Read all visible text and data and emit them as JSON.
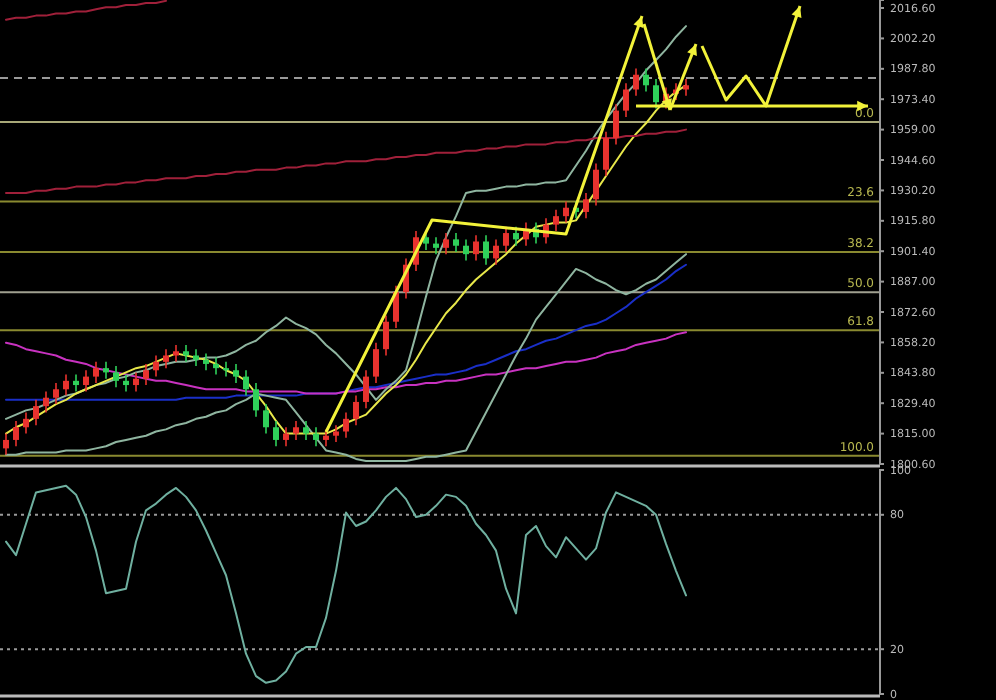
{
  "chart_data": [
    {
      "type": "candlestick",
      "tick_labels": "y",
      "ylim": [
        1800.6,
        2020.4
      ],
      "yticks": [
        {
          "value": 2016.6,
          "label": "2016.60"
        },
        {
          "value": 2002.2,
          "label": "2002.20"
        },
        {
          "value": 1987.8,
          "label": "1987.80"
        },
        {
          "value": 1973.4,
          "label": "1973.40"
        },
        {
          "value": 1959,
          "label": "1959.00"
        },
        {
          "value": 1944.6,
          "label": "1944.60"
        },
        {
          "value": 1930.2,
          "label": "1930.20"
        },
        {
          "value": 1915.8,
          "label": "1915.80"
        },
        {
          "value": 1901.4,
          "label": "1901.40"
        },
        {
          "value": 1887,
          "label": "1887.00"
        },
        {
          "value": 1872.6,
          "label": "1872.60"
        },
        {
          "value": 1858.2,
          "label": "1858.20"
        },
        {
          "value": 1843.8,
          "label": "1843.80"
        },
        {
          "value": 1829.4,
          "label": "1829.40"
        },
        {
          "value": 1815,
          "label": "1815.00"
        },
        {
          "value": 1800.6,
          "label": "1800.60"
        }
      ],
      "categories": [
        null,
        null,
        null,
        null,
        null,
        null,
        null,
        null,
        null,
        null,
        null,
        null,
        null,
        null,
        null,
        null,
        null,
        null,
        null,
        null,
        null,
        null,
        null,
        null,
        null,
        null,
        null,
        null,
        null,
        null,
        null,
        null,
        null,
        null,
        null,
        null,
        null,
        null,
        null,
        null,
        null,
        null,
        null,
        null,
        null,
        null,
        null,
        null,
        null,
        null,
        null,
        null,
        null,
        null,
        null,
        null,
        null,
        null,
        null,
        null,
        null,
        null,
        null,
        null,
        null,
        null,
        null,
        null,
        null
      ],
      "ohlc": [
        [
          1808,
          1815,
          1805,
          1812
        ],
        [
          1812,
          1821,
          1809,
          1818
        ],
        [
          1818,
          1825,
          1815,
          1822
        ],
        [
          1822,
          1831,
          1819,
          1828
        ],
        [
          1828,
          1835,
          1825,
          1832
        ],
        [
          1832,
          1839,
          1829,
          1836
        ],
        [
          1836,
          1843,
          1833,
          1840
        ],
        [
          1840,
          1843,
          1835,
          1838
        ],
        [
          1838,
          1845,
          1835,
          1842
        ],
        [
          1842,
          1849,
          1839,
          1846
        ],
        [
          1846,
          1849,
          1841,
          1844
        ],
        [
          1844,
          1847,
          1837,
          1840
        ],
        [
          1840,
          1843,
          1835,
          1838
        ],
        [
          1838,
          1844,
          1835,
          1841
        ],
        [
          1841,
          1848,
          1838,
          1845
        ],
        [
          1845,
          1852,
          1842,
          1849
        ],
        [
          1849,
          1855,
          1846,
          1852
        ],
        [
          1852,
          1857,
          1849,
          1854
        ],
        [
          1854,
          1857,
          1849,
          1852
        ],
        [
          1852,
          1855,
          1847,
          1850
        ],
        [
          1850,
          1853,
          1845,
          1848
        ],
        [
          1848,
          1851,
          1843,
          1846
        ],
        [
          1846,
          1849,
          1842,
          1845
        ],
        [
          1845,
          1848,
          1839,
          1842
        ],
        [
          1842,
          1845,
          1833,
          1836
        ],
        [
          1836,
          1839,
          1823,
          1826
        ],
        [
          1826,
          1829,
          1815,
          1818
        ],
        [
          1818,
          1821,
          1809,
          1812
        ],
        [
          1812,
          1818,
          1809,
          1815
        ],
        [
          1815,
          1821,
          1812,
          1818
        ],
        [
          1818,
          1821,
          1812,
          1815
        ],
        [
          1815,
          1818,
          1809,
          1812
        ],
        [
          1812,
          1817,
          1809,
          1814
        ],
        [
          1814,
          1819,
          1811,
          1816
        ],
        [
          1816,
          1825,
          1813,
          1822
        ],
        [
          1822,
          1833,
          1819,
          1830
        ],
        [
          1830,
          1845,
          1827,
          1842
        ],
        [
          1842,
          1858,
          1839,
          1855
        ],
        [
          1855,
          1871,
          1852,
          1868
        ],
        [
          1868,
          1885,
          1865,
          1882
        ],
        [
          1882,
          1898,
          1879,
          1895
        ],
        [
          1895,
          1911,
          1892,
          1908
        ],
        [
          1908,
          1911,
          1902,
          1905
        ],
        [
          1905,
          1908,
          1900,
          1903
        ],
        [
          1903,
          1910,
          1900,
          1907
        ],
        [
          1907,
          1910,
          1901,
          1904
        ],
        [
          1904,
          1907,
          1897,
          1900
        ],
        [
          1900,
          1909,
          1897,
          1906
        ],
        [
          1906,
          1909,
          1895,
          1898
        ],
        [
          1898,
          1907,
          1895,
          1904
        ],
        [
          1904,
          1913,
          1901,
          1910
        ],
        [
          1910,
          1913,
          1904,
          1907
        ],
        [
          1907,
          1915,
          1904,
          1912
        ],
        [
          1912,
          1915,
          1905,
          1908
        ],
        [
          1908,
          1917,
          1905,
          1914
        ],
        [
          1914,
          1921,
          1911,
          1918
        ],
        [
          1918,
          1925,
          1915,
          1922
        ],
        [
          1922,
          1925,
          1917,
          1920
        ],
        [
          1920,
          1929,
          1917,
          1926
        ],
        [
          1926,
          1943,
          1923,
          1940
        ],
        [
          1940,
          1958,
          1937,
          1955
        ],
        [
          1955,
          1971,
          1952,
          1968
        ],
        [
          1968,
          1981,
          1965,
          1978
        ],
        [
          1978,
          1988,
          1975,
          1985
        ],
        [
          1985,
          1988,
          1977,
          1980
        ],
        [
          1980,
          1983,
          1969,
          1972
        ],
        [
          1972,
          1979,
          1969,
          1976
        ],
        [
          1976,
          1981,
          1973,
          1978
        ],
        [
          1978,
          1983,
          1975,
          1980
        ]
      ],
      "colors": [
        "#e8322e",
        "#e8322e",
        "#e8322e",
        "#e8322e",
        "#e8322e",
        "#e8322e",
        "#e8322e",
        "#2fd05a",
        "#e8322e",
        "#e8322e",
        "#2fd05a",
        "#2fd05a",
        "#2fd05a",
        "#e8322e",
        "#e8322e",
        "#e8322e",
        "#e8322e",
        "#e8322e",
        "#2fd05a",
        "#2fd05a",
        "#2fd05a",
        "#2fd05a",
        "#2fd05a",
        "#2fd05a",
        "#2fd05a",
        "#2fd05a",
        "#2fd05a",
        "#2fd05a",
        "#e8322e",
        "#e8322e",
        "#2fd05a",
        "#2fd05a",
        "#e8322e",
        "#e8322e",
        "#e8322e",
        "#e8322e",
        "#e8322e",
        "#e8322e",
        "#e8322e",
        "#e8322e",
        "#e8322e",
        "#e8322e",
        "#2fd05a",
        "#2fd05a",
        "#e8322e",
        "#2fd05a",
        "#2fd05a",
        "#e8322e",
        "#2fd05a",
        "#e8322e",
        "#e8322e",
        "#2fd05a",
        "#e8322e",
        "#2fd05a",
        "#e8322e",
        "#e8322e",
        "#e8322e",
        "#2fd05a",
        "#e8322e",
        "#e8322e",
        "#e8322e",
        "#e8322e",
        "#e8322e",
        "#e8322e",
        "#2fd05a",
        "#2fd05a",
        "#e8322e",
        "#e8322e",
        "#e8322e"
      ],
      "series": [
        {
          "type": "line",
          "color": "#1a2fc8",
          "values": [
            1831,
            1831,
            1831,
            1831,
            1831,
            1831,
            1831,
            1831,
            1831,
            1831,
            1831,
            1831,
            1831,
            1831,
            1831,
            1831,
            1831,
            1831,
            1832,
            1832,
            1832,
            1832,
            1832,
            1833,
            1833,
            1833,
            1833,
            1833,
            1833,
            1833,
            1834,
            1834,
            1834,
            1834,
            1835,
            1836,
            1837,
            1837,
            1838,
            1839,
            1840,
            1841,
            1842,
            1843,
            1843,
            1844,
            1845,
            1847,
            1848,
            1850,
            1852,
            1854,
            1855,
            1857,
            1859,
            1860,
            1862,
            1864,
            1866,
            1867,
            1869,
            1872,
            1875,
            1879,
            1882,
            1885,
            1888,
            1892,
            1895
          ]
        },
        {
          "type": "line",
          "color": "#c832c0",
          "values": [
            1858,
            1857,
            1855,
            1854,
            1853,
            1852,
            1850,
            1849,
            1848,
            1846,
            1845,
            1844,
            1843,
            1842,
            1841,
            1840,
            1840,
            1839,
            1838,
            1837,
            1836,
            1836,
            1836,
            1836,
            1835,
            1835,
            1835,
            1835,
            1835,
            1835,
            1834,
            1834,
            1834,
            1834,
            1835,
            1835,
            1836,
            1836,
            1837,
            1837,
            1838,
            1838,
            1839,
            1839,
            1840,
            1840,
            1841,
            1842,
            1843,
            1843,
            1844,
            1845,
            1846,
            1846,
            1847,
            1848,
            1849,
            1849,
            1850,
            1851,
            1853,
            1854,
            1855,
            1857,
            1858,
            1859,
            1860,
            1862,
            1863
          ]
        },
        {
          "type": "line",
          "color": "#8fb5a0",
          "values": [
            1822,
            1824,
            1826,
            1827,
            1829,
            1831,
            1833,
            1834,
            1836,
            1838,
            1839,
            1841,
            1842,
            1844,
            1845,
            1847,
            1848,
            1849,
            1849,
            1850,
            1851,
            1851,
            1852,
            1854,
            1857,
            1859,
            1863,
            1866,
            1870,
            1867,
            1865,
            1862,
            1857,
            1853,
            1848,
            1843,
            1837,
            1831,
            1836,
            1840,
            1845,
            1862,
            1880,
            1897,
            1908,
            1918,
            1929,
            1930,
            1930,
            1931,
            1932,
            1932,
            1933,
            1933,
            1934,
            1934,
            1935,
            1942,
            1949,
            1957,
            1964,
            1970,
            1976,
            1981,
            1987,
            1992,
            1997,
            2003,
            2008
          ]
        },
        {
          "type": "line",
          "color": "#8fb5a0",
          "values": [
            1805,
            1805,
            1806,
            1806,
            1806,
            1806,
            1807,
            1807,
            1807,
            1808,
            1809,
            1811,
            1812,
            1813,
            1814,
            1816,
            1817,
            1819,
            1820,
            1822,
            1823,
            1825,
            1826,
            1829,
            1831,
            1834,
            1833,
            1832,
            1831,
            1825,
            1819,
            1813,
            1807,
            1806,
            1805,
            1803,
            1802,
            1802,
            1802,
            1802,
            1802,
            1803,
            1804,
            1804,
            1805,
            1806,
            1807,
            1816,
            1825,
            1834,
            1843,
            1852,
            1860,
            1869,
            1875,
            1881,
            1887,
            1893,
            1891,
            1888,
            1886,
            1883,
            1881,
            1883,
            1886,
            1888,
            1892,
            1896,
            1900
          ]
        },
        {
          "type": "line",
          "color": "#e8e84a",
          "values": [
            1815,
            1818,
            1820,
            1823,
            1826,
            1829,
            1831,
            1834,
            1836,
            1838,
            1840,
            1842,
            1844,
            1846,
            1847,
            1849,
            1851,
            1853,
            1852,
            1851,
            1850,
            1848,
            1845,
            1843,
            1840,
            1834,
            1828,
            1821,
            1815,
            1815,
            1815,
            1815,
            1815,
            1817,
            1820,
            1822,
            1824,
            1829,
            1834,
            1838,
            1843,
            1850,
            1858,
            1865,
            1872,
            1877,
            1883,
            1888,
            1892,
            1896,
            1900,
            1905,
            1909,
            1913,
            1914,
            1915,
            1915,
            1916,
            1923,
            1930,
            1937,
            1944,
            1951,
            1957,
            1962,
            1968,
            1973,
            1977,
            1980
          ]
        },
        {
          "type": "line",
          "color": "#a0203a",
          "values": [
            1929,
            1929,
            1929,
            1930,
            1930,
            1931,
            1931,
            1932,
            1932,
            1932,
            1933,
            1933,
            1934,
            1934,
            1935,
            1935,
            1936,
            1936,
            1936,
            1937,
            1937,
            1938,
            1938,
            1939,
            1939,
            1940,
            1940,
            1940,
            1941,
            1941,
            1942,
            1942,
            1943,
            1943,
            1944,
            1944,
            1944,
            1945,
            1945,
            1946,
            1946,
            1947,
            1947,
            1948,
            1948,
            1948,
            1949,
            1949,
            1950,
            1950,
            1951,
            1951,
            1952,
            1952,
            1952,
            1953,
            1953,
            1954,
            1954,
            1955,
            1955,
            1955,
            1956,
            1956,
            1957,
            1957,
            1958,
            1958,
            1959
          ]
        },
        {
          "type": "line",
          "color": "#a0203a",
          "values": [
            2011,
            2012,
            2012,
            2013,
            2013,
            2014,
            2014,
            2015,
            2015,
            2016,
            2017,
            2017,
            2018,
            2018,
            2019,
            2019,
            2020,
            null,
            null,
            null,
            null,
            null,
            null,
            null,
            null,
            null,
            null,
            null,
            null,
            null,
            null,
            null,
            null,
            null,
            null,
            null,
            null,
            null,
            null,
            null,
            null,
            null,
            null,
            null,
            null,
            null,
            null,
            null,
            null,
            null,
            null,
            null,
            null,
            null,
            null,
            null,
            null,
            null,
            null,
            null,
            null,
            null,
            null,
            null,
            null,
            null,
            null,
            null,
            null
          ]
        }
      ],
      "ref_lines": [
        {
          "axis": "y",
          "value": 1983.5,
          "color": "#9a9a9a",
          "line_style": "dashed"
        },
        {
          "axis": "y",
          "value": 1962.6,
          "color": "#a8a878",
          "line_style": "solid"
        },
        {
          "axis": "y",
          "value": 1925,
          "color": "#8a8a30",
          "line_style": "solid"
        },
        {
          "axis": "y",
          "value": 1901,
          "color": "#8a8a30",
          "line_style": "solid"
        },
        {
          "axis": "y",
          "value": 1882,
          "color": "#a0a090",
          "line_style": "solid"
        },
        {
          "axis": "y",
          "value": 1864,
          "color": "#8a8a30",
          "line_style": "solid"
        },
        {
          "axis": "y",
          "value": 1804.5,
          "color": "#8a8a30",
          "line_style": "solid"
        }
      ],
      "annotations": [
        {
          "text": "0.0",
          "y": 1962.6
        },
        {
          "text": "23.6",
          "y": 1925
        },
        {
          "text": "38.2",
          "y": 1901
        },
        {
          "text": "50.0",
          "y": 1882
        },
        {
          "text": "61.8",
          "y": 1864
        },
        {
          "text": "100.0",
          "y": 1804.5
        }
      ]
    },
    {
      "type": "line",
      "tick_labels": "y",
      "ylim": [
        0,
        100
      ],
      "yticks": [
        0,
        20,
        80,
        100
      ],
      "categories": [
        null,
        null,
        null,
        null,
        null,
        null,
        null,
        null,
        null,
        null,
        null,
        null,
        null,
        null,
        null,
        null,
        null,
        null,
        null,
        null,
        null,
        null,
        null,
        null,
        null,
        null,
        null,
        null,
        null,
        null,
        null,
        null,
        null,
        null,
        null,
        null,
        null,
        null,
        null,
        null,
        null,
        null,
        null,
        null,
        null,
        null,
        null,
        null,
        null,
        null,
        null,
        null,
        null,
        null,
        null,
        null,
        null,
        null,
        null,
        null,
        null,
        null,
        null,
        null,
        null,
        null,
        null,
        null,
        null
      ],
      "series": [
        {
          "color": "#6fb0a0",
          "values": [
            68,
            62,
            76,
            90,
            91,
            92,
            93,
            89,
            79,
            64,
            45,
            46,
            47,
            68,
            82,
            85,
            89,
            92,
            88,
            82,
            73,
            63,
            53,
            36,
            18,
            8,
            5,
            6,
            10,
            18,
            21,
            21,
            34,
            55,
            81,
            75,
            77,
            82,
            88,
            92,
            87,
            79,
            80,
            84,
            89,
            88,
            84,
            76,
            71,
            64,
            47,
            36,
            71,
            75,
            66,
            61,
            70,
            65,
            60,
            65,
            81,
            90,
            88,
            86,
            84,
            80,
            67,
            55,
            44
          ]
        }
      ],
      "ref_lines": [
        {
          "axis": "y",
          "value": 80,
          "color": "#9a9a9a",
          "line_style": "dotted"
        },
        {
          "axis": "y",
          "value": 20,
          "color": "#9a9a9a",
          "line_style": "dotted"
        }
      ]
    }
  ]
}
